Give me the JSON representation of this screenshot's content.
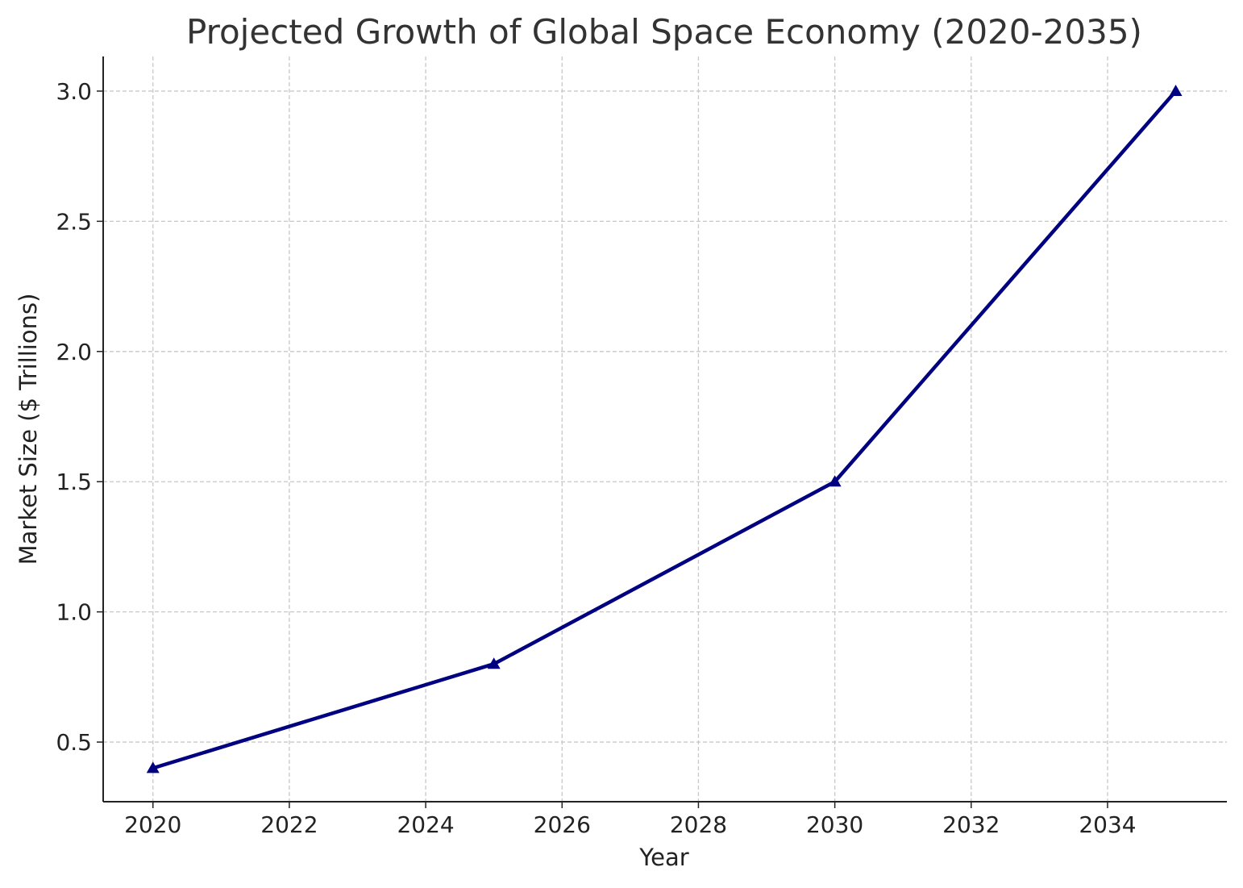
{
  "chart_data": {
    "type": "line",
    "title": "Projected Growth of Global Space Economy (2020-2035)",
    "xlabel": "Year",
    "ylabel": "Market Size ($ Trillions)",
    "x": [
      2020,
      2025,
      2030,
      2035
    ],
    "series": [
      {
        "name": "Market Size",
        "values": [
          0.4,
          0.8,
          1.5,
          3.0
        ],
        "color": "#000080",
        "marker": "triangle"
      }
    ],
    "xlim": [
      2019.27,
      2035.75
    ],
    "ylim": [
      0.271,
      3.133
    ],
    "xticks": [
      2020,
      2022,
      2024,
      2026,
      2028,
      2030,
      2032,
      2034
    ],
    "xtick_labels": [
      "2020",
      "2022",
      "2024",
      "2026",
      "2028",
      "2030",
      "2032",
      "2034"
    ],
    "yticks": [
      0.5,
      1.0,
      1.5,
      2.0,
      2.5,
      3.0
    ],
    "ytick_labels": [
      "0.5",
      "1.0",
      "1.5",
      "2.0",
      "2.5",
      "3.0"
    ],
    "grid": true
  }
}
